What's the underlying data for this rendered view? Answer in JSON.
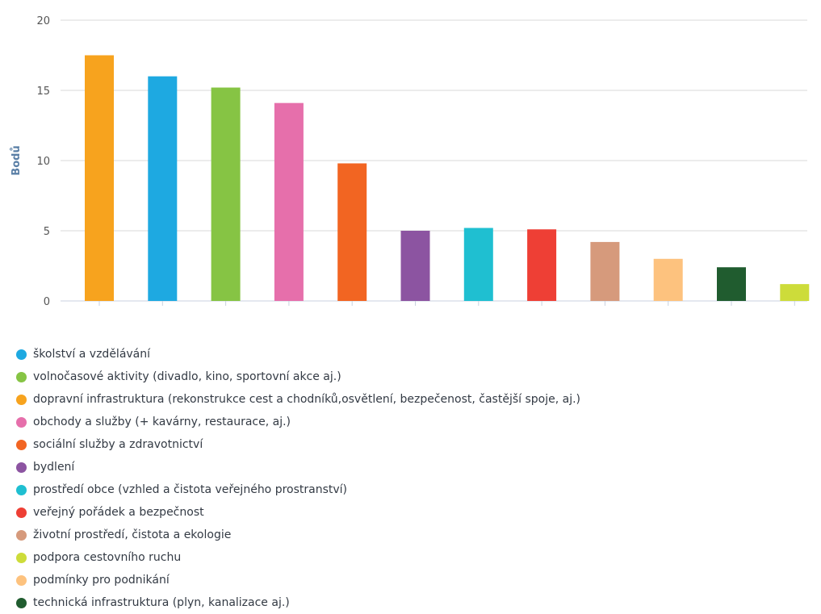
{
  "chart_data": {
    "type": "bar",
    "ylabel": "Bodů",
    "ylim": [
      0,
      20
    ],
    "yticks": [
      0,
      5,
      10,
      15,
      20
    ],
    "grid": true,
    "legend_position": "bottom",
    "series": [
      {
        "name": "dopravní infrastruktura (rekonstrukce cest a chodníků,osvětlení, bezpečenost, častější spoje, aj.)",
        "value": 17.5,
        "color": "#f7a31e"
      },
      {
        "name": "školství a vzdělávání",
        "value": 16.0,
        "color": "#1ea9e1"
      },
      {
        "name": "volnočasové aktivity (divadlo, kino, sportovní akce aj.)",
        "value": 15.2,
        "color": "#86c444"
      },
      {
        "name": "obchody a služby (+ kavárny, restaurace, aj.)",
        "value": 14.1,
        "color": "#e66fab"
      },
      {
        "name": "sociální služby a zdravotnictví",
        "value": 9.8,
        "color": "#f26522"
      },
      {
        "name": "bydlení",
        "value": 5.0,
        "color": "#8c54a1"
      },
      {
        "name": "prostředí obce (vzhled a čistota veřejného prostranství)",
        "value": 5.2,
        "color": "#1fbfd1"
      },
      {
        "name": "veřejný pořádek a bezpečnost",
        "value": 5.1,
        "color": "#ee3f35"
      },
      {
        "name": "životní prostředí, čistota a ekologie",
        "value": 4.2,
        "color": "#d69a7c"
      },
      {
        "name": "podmínky pro podnikání",
        "value": 3.0,
        "color": "#fdc27e"
      },
      {
        "name": "technická infrastruktura (plyn, kanalizace aj.)",
        "value": 2.4,
        "color": "#205c2f"
      },
      {
        "name": "podpora cestovního ruchu",
        "value": 1.2,
        "color": "#cddc3a"
      }
    ],
    "legend_order": [
      1,
      2,
      0,
      3,
      4,
      5,
      6,
      7,
      8,
      11,
      9,
      10
    ]
  }
}
